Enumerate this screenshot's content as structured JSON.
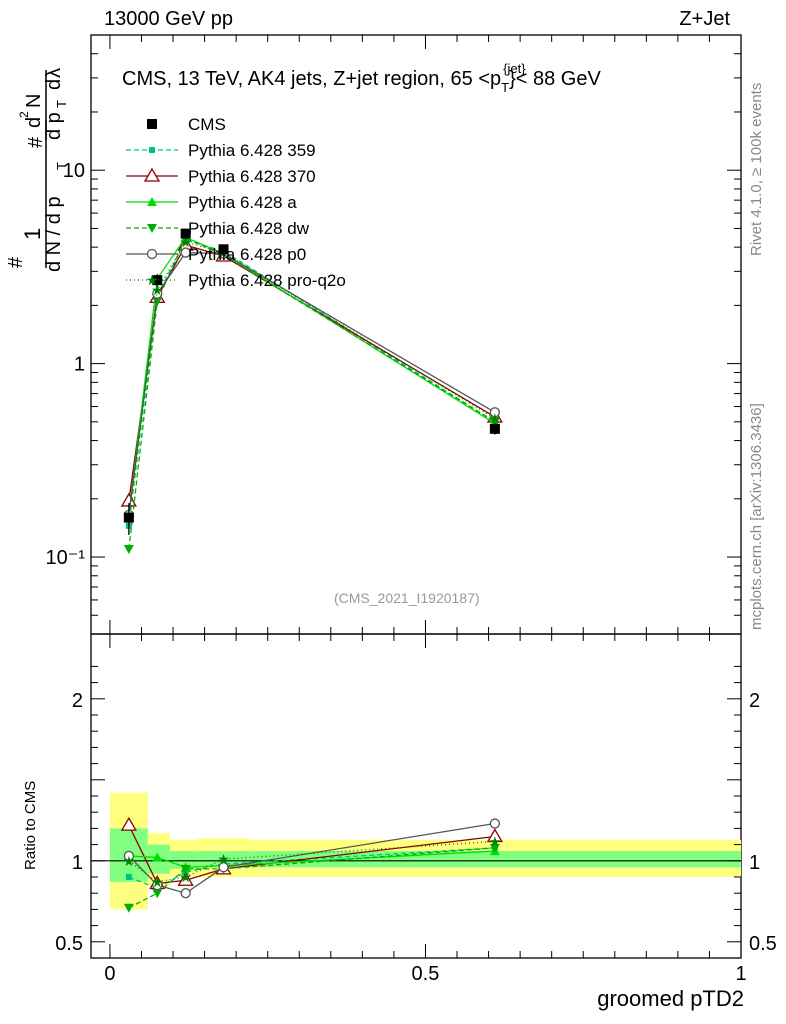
{
  "header": {
    "left": "13000 GeV pp",
    "right": "Z+Jet"
  },
  "side_labels": {
    "rivet": "Rivet 4.1.0, ≥ 100k events",
    "mcplots": "mcplots.cern.ch [arXiv:1306.3436]"
  },
  "watermark": "(CMS_2021_I1920187)",
  "colors": {
    "cms": "#000000",
    "p359": "#00c080",
    "p370": "#8b0000",
    "pa": "#00e000",
    "pdw": "#00b000",
    "pp0": "#555555",
    "pq2o": "#008000",
    "band_stat": "#80ff80",
    "band_total": "#ffff80"
  },
  "chart_data": [
    {
      "type": "line",
      "title": "CMS, 13 TeV, AK4 jets, Z+jet region, 65 <p_T^{jet}> < 88 GeV",
      "title_parts": {
        "main": "CMS, 13 TeV, AK4 jets, Z+jet region, 65 <p",
        "sub": "T",
        "sup": "{jet}",
        "tail": "}< 88 GeV"
      },
      "ylabel": "1/(dN/dpT) d²N/(dpT dλ)",
      "yscale": "log",
      "ylim": [
        0.04,
        50
      ],
      "xlim": [
        -0.03,
        1.0
      ],
      "y_tick_labels": [
        "10⁻¹",
        "1",
        "10"
      ],
      "x": [
        0.03,
        0.075,
        0.12,
        0.18,
        0.61
      ],
      "series": [
        {
          "name": "CMS",
          "values": [
            0.16,
            2.7,
            4.7,
            3.9,
            0.46
          ],
          "errors": [
            0.03,
            0.2,
            0.2,
            0.2,
            0.03
          ]
        },
        {
          "name": "Pythia 6.428 359",
          "values": [
            0.145,
            2.25,
            4.35,
            3.82,
            0.5
          ]
        },
        {
          "name": "Pythia 6.428 370",
          "values": [
            0.195,
            2.2,
            4.1,
            3.6,
            0.53
          ]
        },
        {
          "name": "Pythia 6.428 a",
          "values": [
            0.165,
            2.75,
            4.5,
            3.7,
            0.49
          ]
        },
        {
          "name": "Pythia 6.428 dw",
          "values": [
            0.11,
            2.1,
            4.45,
            3.65,
            0.5
          ]
        },
        {
          "name": "Pythia 6.428 p0",
          "values": [
            0.165,
            2.3,
            3.75,
            3.7,
            0.56
          ]
        },
        {
          "name": "Pythia 6.428 pro-q2o",
          "values": [
            0.16,
            2.4,
            4.25,
            3.75,
            0.52
          ]
        }
      ]
    },
    {
      "type": "line",
      "title": "",
      "ylabel": "Ratio to CMS",
      "xlabel": "groomed pTD2",
      "ylim": [
        0.4,
        2.4
      ],
      "xlim": [
        -0.03,
        1.0
      ],
      "y_tick_labels": [
        "0.5",
        "1",
        "2"
      ],
      "x_tick_labels": [
        "0",
        "0.5",
        "1"
      ],
      "x": [
        0.03,
        0.075,
        0.12,
        0.18,
        0.61
      ],
      "bins": [
        [
          0.0,
          0.06
        ],
        [
          0.06,
          0.095
        ],
        [
          0.095,
          0.14
        ],
        [
          0.14,
          0.22
        ],
        [
          0.22,
          1.0
        ]
      ],
      "band_stat": [
        [
          0.87,
          1.2
        ],
        [
          0.92,
          1.1
        ],
        [
          0.95,
          1.06
        ],
        [
          0.96,
          1.06
        ],
        [
          0.96,
          1.06
        ]
      ],
      "band_total": [
        [
          0.7,
          1.42
        ],
        [
          0.85,
          1.17
        ],
        [
          0.9,
          1.13
        ],
        [
          0.9,
          1.14
        ],
        [
          0.9,
          1.13
        ]
      ],
      "series": [
        {
          "name": "Pythia 6.428 359",
          "values": [
            0.9,
            0.83,
            0.93,
            0.98,
            1.08
          ]
        },
        {
          "name": "Pythia 6.428 370",
          "values": [
            1.22,
            0.86,
            0.88,
            0.95,
            1.15
          ]
        },
        {
          "name": "Pythia 6.428 a",
          "values": [
            1.03,
            1.02,
            0.96,
            0.97,
            1.06
          ]
        },
        {
          "name": "Pythia 6.428 dw",
          "values": [
            0.71,
            0.8,
            0.95,
            0.95,
            1.08
          ]
        },
        {
          "name": "Pythia 6.428 p0",
          "values": [
            1.03,
            0.85,
            0.8,
            0.96,
            1.23
          ]
        },
        {
          "name": "Pythia 6.428 pro-q2o",
          "values": [
            1.0,
            0.87,
            0.9,
            1.01,
            1.12
          ]
        }
      ]
    }
  ]
}
